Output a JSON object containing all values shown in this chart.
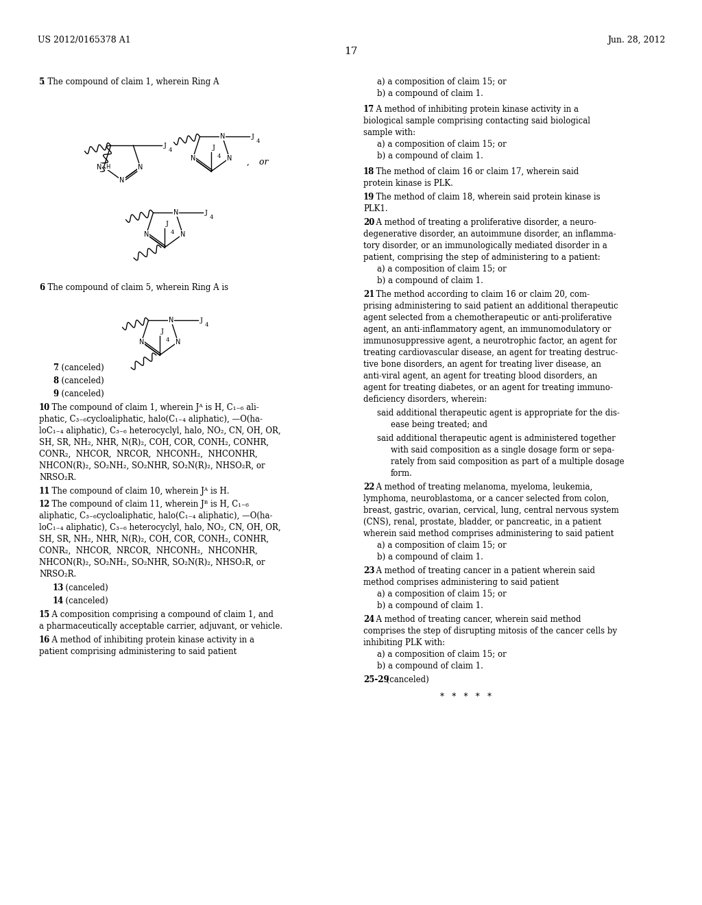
{
  "background_color": "#ffffff",
  "page_number": "17",
  "header_left": "US 2012/0165378 A1",
  "header_right": "Jun. 28, 2012"
}
